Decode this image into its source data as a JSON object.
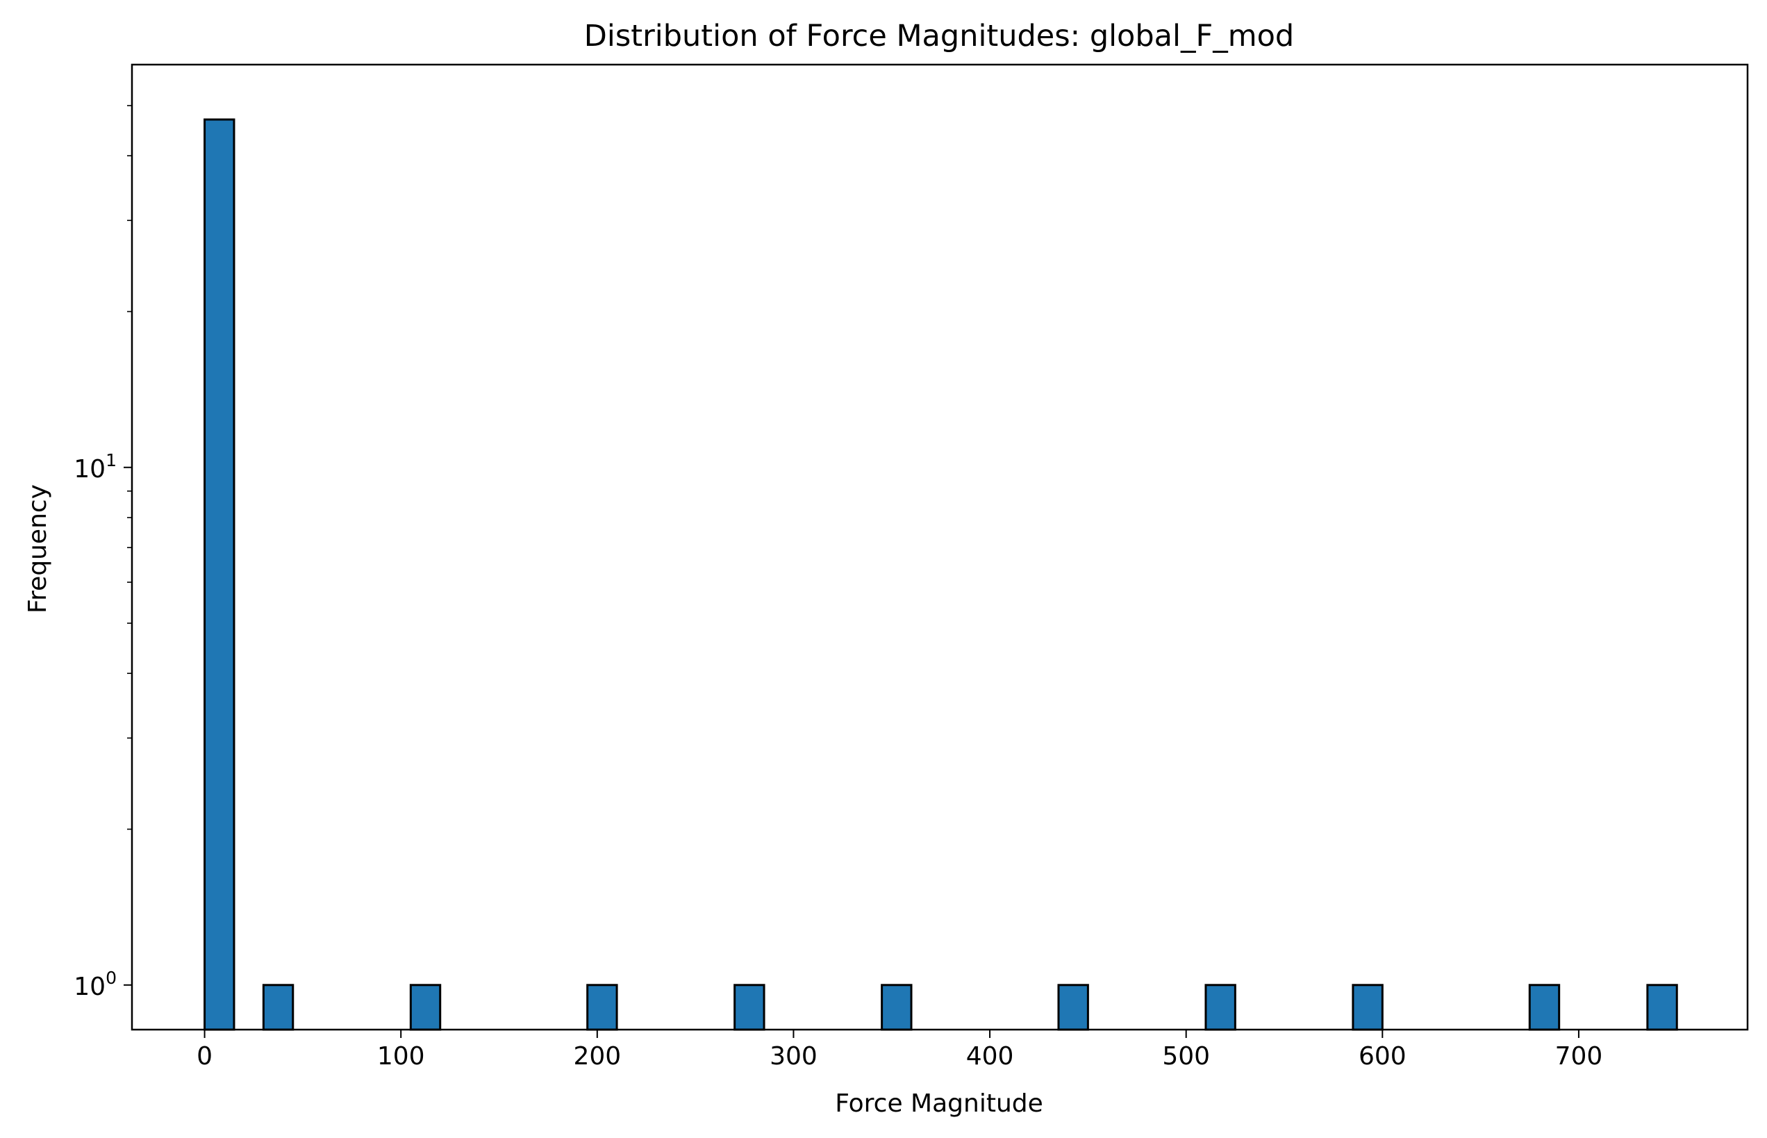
{
  "chart_data": {
    "type": "bar",
    "title": "Distribution of Force Magnitudes: global_F_mod",
    "xlabel": "Force Magnitude",
    "ylabel": "Frequency",
    "y_scale": "log",
    "xlim": [
      -37,
      786
    ],
    "ylim": [
      0.82,
      60
    ],
    "x_ticks": [
      0,
      100,
      200,
      300,
      400,
      500,
      600,
      700
    ],
    "y_major_ticks": [
      {
        "value": 1,
        "base": "10",
        "exp": "0"
      },
      {
        "value": 10,
        "base": "10",
        "exp": "1"
      }
    ],
    "y_minor_ticks": [
      2,
      3,
      4,
      5,
      6,
      7,
      8,
      9,
      20,
      30,
      40,
      50
    ],
    "bin_width": 15,
    "bins": [
      {
        "x0": 0,
        "x1": 15,
        "count": 47
      },
      {
        "x0": 30,
        "x1": 45,
        "count": 1
      },
      {
        "x0": 105,
        "x1": 120,
        "count": 1
      },
      {
        "x0": 195,
        "x1": 210,
        "count": 1
      },
      {
        "x0": 270,
        "x1": 285,
        "count": 1
      },
      {
        "x0": 345,
        "x1": 360,
        "count": 1
      },
      {
        "x0": 435,
        "x1": 450,
        "count": 1
      },
      {
        "x0": 510,
        "x1": 525,
        "count": 1
      },
      {
        "x0": 585,
        "x1": 600,
        "count": 1
      },
      {
        "x0": 675,
        "x1": 690,
        "count": 1
      },
      {
        "x0": 735,
        "x1": 750,
        "count": 1
      }
    ],
    "bar_color": "#1f77b4",
    "edge_color": "#000000",
    "grid": false,
    "legend": "none"
  }
}
